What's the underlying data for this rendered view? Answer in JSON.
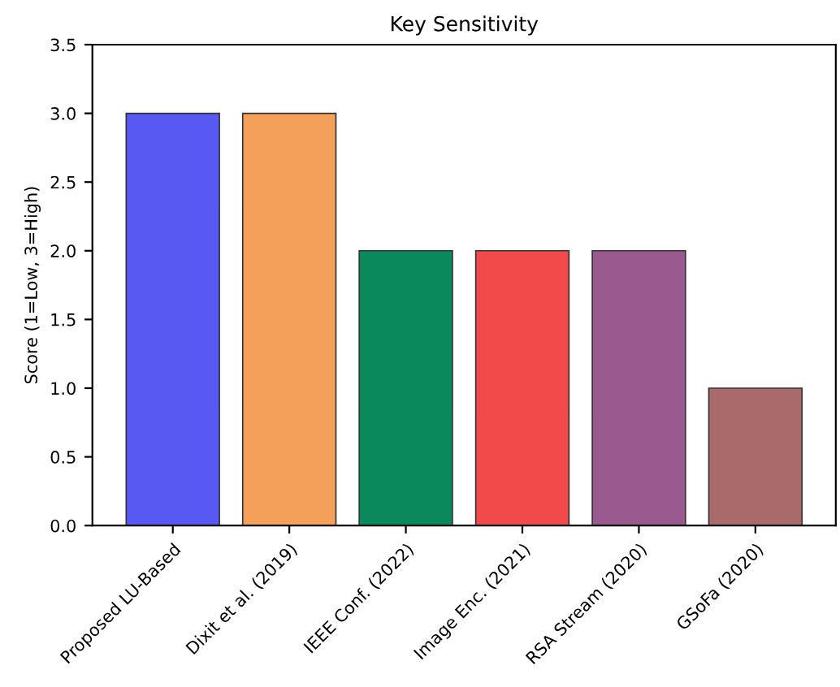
{
  "chart_data": {
    "type": "bar",
    "title": "Key Sensitivity",
    "ylabel": "Score (1=Low, 3=High)",
    "categories": [
      "Proposed LU-Based",
      "Dixit et al. (2019)",
      "IEEE Conf. (2022)",
      "Image Enc. (2021)",
      "RSA Stream (2020)",
      "GSoFa (2020)"
    ],
    "values": [
      3,
      3,
      2,
      2,
      2,
      1
    ],
    "colors": [
      "#5858f2",
      "#f5a05a",
      "#0a8a5c",
      "#f24a4a",
      "#9a5a90",
      "#a86a6a"
    ],
    "ylim": [
      0,
      3.5
    ],
    "yticks": [
      {
        "value": 0,
        "label": "0.0"
      },
      {
        "value": 0.5,
        "label": "0.5"
      },
      {
        "value": 1,
        "label": "1.0"
      },
      {
        "value": 1.5,
        "label": "1.5"
      },
      {
        "value": 2,
        "label": "2.0"
      },
      {
        "value": 2.5,
        "label": "2.5"
      },
      {
        "value": 3,
        "label": "3.0"
      },
      {
        "value": 3.5,
        "label": "3.5"
      }
    ],
    "grid": false
  }
}
